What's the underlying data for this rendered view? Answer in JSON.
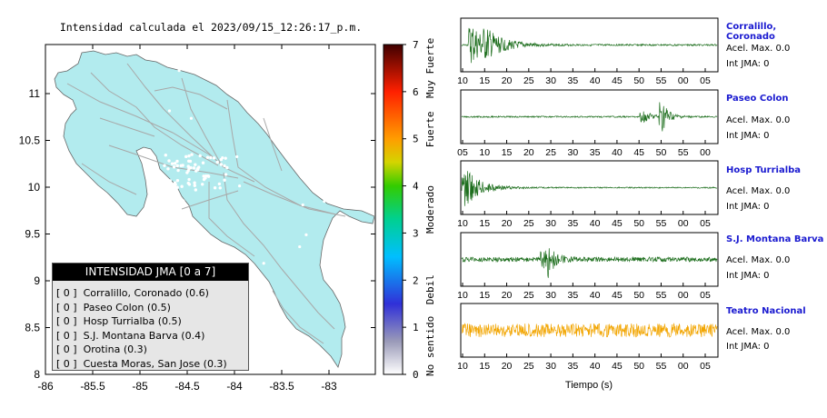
{
  "map": {
    "title": "Intensidad calculada el 2023/09/15_12:26:17_p.m.",
    "lat_ticks": [
      "11",
      "10.5",
      "10",
      "9.5",
      "9",
      "8.5",
      "8"
    ],
    "lon_ticks": [
      "-86",
      "-85.5",
      "-85",
      "-84.5",
      "-84",
      "-83.5",
      "-83"
    ],
    "land_color": "#b2ebee",
    "road_color": "#a8a8a8"
  },
  "colorbar": {
    "ticks": [
      "7",
      "6",
      "5",
      "4",
      "3",
      "2",
      "1",
      "0"
    ],
    "labels": [
      "Muy Fuerte",
      "Fuerte",
      "Moderado",
      "Debil",
      "No sentido"
    ]
  },
  "legend": {
    "title": "INTENSIDAD JMA [0 a 7]",
    "items": [
      {
        "value": "[ 0 ]",
        "text": "Corralillo, Coronado (0.6)"
      },
      {
        "value": "[ 0 ]",
        "text": "Paseo Colon (0.5)"
      },
      {
        "value": "[ 0 ]",
        "text": "Hosp Turrialba (0.5)"
      },
      {
        "value": "[ 0 ]",
        "text": "S.J. Montana Barva (0.4)"
      },
      {
        "value": "[ 0 ]",
        "text": "Orotina (0.3)"
      },
      {
        "value": "[ 0 ]",
        "text": "Cuesta Moras, San Jose (0.3)"
      }
    ]
  },
  "chart_data": [
    {
      "type": "map",
      "title": "Intensidad calculada el 2023/09/15_12:26:17_p.m.",
      "lat_range": [
        8,
        11.3
      ],
      "lon_range": [
        -86,
        -82.5
      ],
      "colorbar": {
        "min": 0,
        "max": 7,
        "classes": [
          "No sentido",
          "Debil",
          "Moderado",
          "Fuerte",
          "Muy Fuerte"
        ]
      },
      "stations": [
        {
          "name": "Corralillo, Coronado",
          "intensity": 0.6,
          "class": 0
        },
        {
          "name": "Paseo Colon",
          "intensity": 0.5,
          "class": 0
        },
        {
          "name": "Hosp Turrialba",
          "intensity": 0.5,
          "class": 0
        },
        {
          "name": "S.J. Montana Barva",
          "intensity": 0.4,
          "class": 0
        },
        {
          "name": "Orotina",
          "intensity": 0.3,
          "class": 0
        },
        {
          "name": "Cuesta Moras, San Jose",
          "intensity": 0.3,
          "class": 0
        }
      ]
    },
    {
      "type": "line",
      "xlabel": "Tiempo (s)",
      "series": [
        {
          "name": "Corralillo, Coronado",
          "acel": "Acel. Max. 0.0",
          "int": "Int JMA: 0",
          "color": "#1d6e1d",
          "ticks": [
            "10",
            "15",
            "20",
            "25",
            "30",
            "35",
            "40",
            "45",
            "50",
            "55",
            "00",
            "05"
          ],
          "bursts": [
            [
              0.04,
              3.2,
              0.05
            ],
            [
              0.1,
              1.4,
              0.08
            ]
          ],
          "noise": 0.12
        },
        {
          "name": "Paseo Colon",
          "acel": "Acel. Max. 0.0",
          "int": "Int JMA: 0",
          "color": "#1d6e1d",
          "ticks": [
            "05",
            "10",
            "15",
            "20",
            "25",
            "30",
            "35",
            "40",
            "45",
            "50",
            "55",
            "00"
          ],
          "bursts": [
            [
              0.78,
              2.8,
              0.025
            ],
            [
              0.71,
              0.8,
              0.04
            ]
          ],
          "noise": 0.1
        },
        {
          "name": "Hosp Turrialba",
          "acel": "Acel. Max. 0.0",
          "int": "Int JMA: 0",
          "color": "#1d6e1d",
          "ticks": [
            "10",
            "15",
            "20",
            "25",
            "30",
            "35",
            "40",
            "45",
            "50",
            "55",
            "00",
            "05"
          ],
          "bursts": [
            [
              0.01,
              3.0,
              0.06
            ]
          ],
          "noise": 0.08
        },
        {
          "name": "S.J. Montana Barva",
          "acel": "Acel. Max. 0.0",
          "int": "Int JMA: 0",
          "color": "#1d6e1d",
          "ticks": [
            "10",
            "15",
            "20",
            "25",
            "30",
            "35",
            "40",
            "45",
            "50",
            "55",
            "00",
            "05"
          ],
          "bursts": [
            [
              0.34,
              2.2,
              0.015
            ],
            [
              0.32,
              1.2,
              0.04
            ]
          ],
          "noise": 0.35
        },
        {
          "name": "Teatro Nacional",
          "acel": "Acel. Max. 0.0",
          "int": "Int JMA: 0",
          "color": "#f2a500",
          "ticks": [
            "10",
            "15",
            "20",
            "25",
            "30",
            "35",
            "40",
            "45",
            "50",
            "55",
            "00",
            "05"
          ],
          "bursts": [],
          "noise": 1.0
        }
      ]
    }
  ]
}
